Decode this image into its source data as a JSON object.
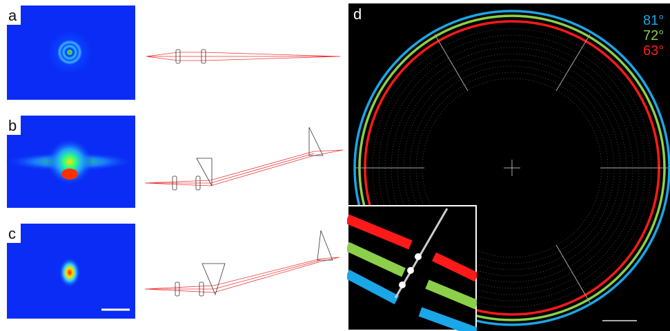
{
  "panels": [
    {
      "label": "a"
    },
    {
      "label": "b"
    },
    {
      "label": "c"
    },
    {
      "label": "d",
      "legend": [
        {
          "label": "81°",
          "color": "#1ba6e8"
        },
        {
          "label": "72°",
          "color": "#8cd04a"
        },
        {
          "label": "63°",
          "color": "#ff1a1a"
        }
      ]
    }
  ]
}
